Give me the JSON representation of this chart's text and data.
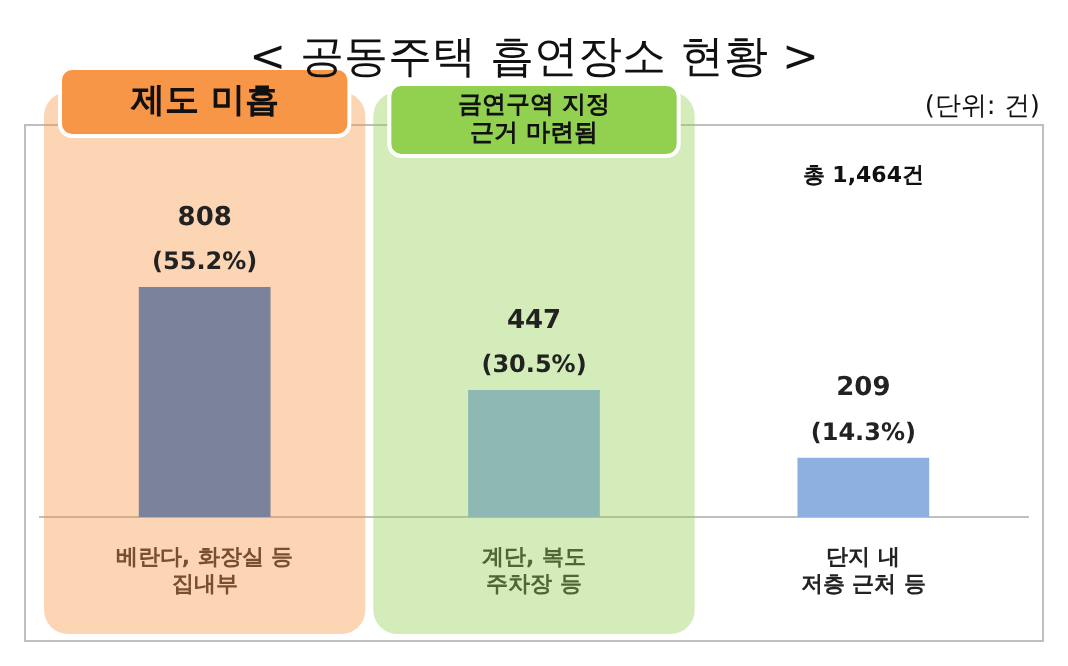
{
  "chart_data": {
    "type": "bar",
    "title": "< 공동주택 흡연장소 현황 >",
    "categories": [
      "베란다, 화장실 등\n집내부",
      "계단, 복도\n주차장 등",
      "단지 내\n저층 근처 등"
    ],
    "values": [
      808,
      447,
      209
    ],
    "colors": [
      "#7b829b",
      "#8db8b4",
      "#8db0e0"
    ],
    "value_labels": [
      "808\n(55.2%)",
      "447\n(30.5%)",
      "209\n(14.3%)"
    ],
    "bands": [
      {
        "axis": "x",
        "from": "베란다, 화장실 등\n집내부",
        "to": "베란다, 화장실 등\n집내부",
        "label": "제도 미흡",
        "color": "#f79646"
      },
      {
        "axis": "x",
        "from": "계단, 복도\n주차장 등",
        "to": "계단, 복도\n주차장 등",
        "label": "금연구역 지정\n근거 마련됨",
        "color": "#92d050"
      }
    ],
    "annotations": [
      "(단위: 건)",
      "총 1,464건"
    ],
    "tick_labels": "x",
    "grid": false,
    "legend": false
  }
}
